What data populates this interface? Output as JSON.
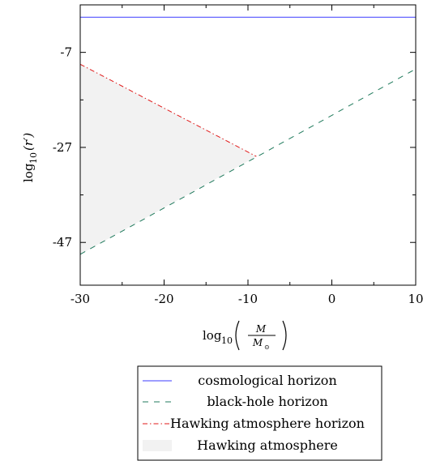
{
  "chart_data": {
    "type": "line",
    "xlim": [
      -30,
      10
    ],
    "ylim": [
      -56,
      3
    ],
    "x_ticks": [
      -30,
      -20,
      -10,
      0,
      10
    ],
    "x_tick_labels": [
      "-30",
      "-20",
      "-10",
      "0",
      "10"
    ],
    "y_ticks": [
      -7,
      -27,
      -47
    ],
    "y_tick_labels": [
      "-7",
      "-27",
      "-47"
    ],
    "xlabel": {
      "prefix": "log",
      "sub": "10",
      "numerator": "M",
      "denominator": "M",
      "denominator_sub": "⊙"
    },
    "ylabel": {
      "prefix": "log",
      "sub": "10",
      "arg": "(r′)"
    },
    "grid": false,
    "legend_position": "bottom-outside",
    "series": [
      {
        "name": "cosmological horizon",
        "style": "solid",
        "color": "#3b3bff",
        "x": [
          -30,
          10
        ],
        "y": [
          0.4,
          0.4
        ]
      },
      {
        "name": "black-hole horizon",
        "style": "dashed",
        "color": "#1f7a5c",
        "x": [
          -30,
          10
        ],
        "y": [
          -49.5,
          -10.5
        ]
      },
      {
        "name": "Hawking atmosphere horizon",
        "style": "dashdot",
        "color": "#e01a1a",
        "x": [
          -30,
          -9
        ],
        "y": [
          -9.5,
          -28.9
        ]
      }
    ],
    "area": {
      "name": "Hawking atmosphere",
      "color": "#f2f2f2",
      "x": [
        -30,
        -9,
        -30
      ],
      "y": [
        -9.5,
        -28.9,
        -49.5
      ]
    }
  }
}
